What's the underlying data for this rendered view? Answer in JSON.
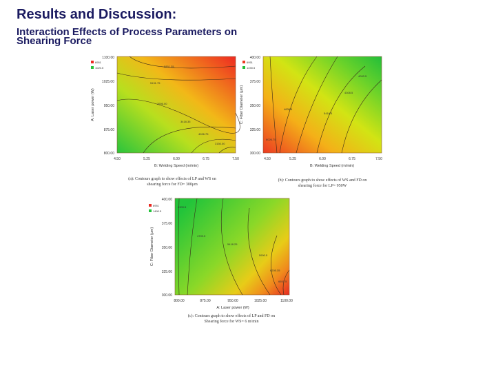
{
  "slide": {
    "title": "Results and Discussion:",
    "subtitle": "Interaction Effects of Process Parameters on Shearing Force"
  },
  "chart_data": [
    {
      "type": "heatmap",
      "xlabel": "B: Welding Speed (m/min)",
      "ylabel": "A: Laser power (W)",
      "xticks": [
        "4.50",
        "5.25",
        "6.00",
        "6.75",
        "7.50"
      ],
      "yticks": [
        "800.00",
        "875.00",
        "950.00",
        "1025.00",
        "1100.00"
      ],
      "legend": {
        "high": "6951",
        "low": "1020.5"
      },
      "contour_labels": [
        "5851.35",
        "5131.75",
        "3906.00",
        "3418.35",
        "4026.75",
        "3150.00"
      ],
      "caption": [
        "(a): Contours graph to show effects of LP and WS on",
        "shearing force for FD= 300μm"
      ]
    },
    {
      "type": "heatmap",
      "xlabel": "B: Welding Speed (m/min)",
      "ylabel": "C: Fiber Diameter (μm)",
      "xticks": [
        "4.50",
        "5.25",
        "6.00",
        "6.75",
        "7.50"
      ],
      "yticks": [
        "300.00",
        "325.00",
        "350.00",
        "375.00",
        "400.00"
      ],
      "legend": {
        "high": "6951",
        "low": "1490.5"
      },
      "contour_labels": [
        "4093.5",
        "4308.5",
        "4838.5",
        "5418.5",
        "6026.75"
      ],
      "caption": [
        "(b): Contours graph to show effects of WS and FD on",
        "shearing force for LP= 950W"
      ]
    },
    {
      "type": "heatmap",
      "xlabel": "A: Laser power (W)",
      "ylabel": "C: Fiber Diameter (μm)",
      "xticks": [
        "800.00",
        "875.00",
        "950.00",
        "1025.00",
        "1100.00"
      ],
      "yticks": [
        "300.00",
        "325.00",
        "350.00",
        "375.00",
        "400.00"
      ],
      "legend": {
        "high": "6951",
        "low": "1490.5"
      },
      "contour_labels": [
        "4309.5",
        "4709.5",
        "5418.25",
        "5900.5",
        "6205.35",
        "6651.5"
      ],
      "caption": [
        "(c): Contours graph to show effects of LP and FD on",
        "Shearing force for WS= 6 m/min"
      ]
    }
  ]
}
